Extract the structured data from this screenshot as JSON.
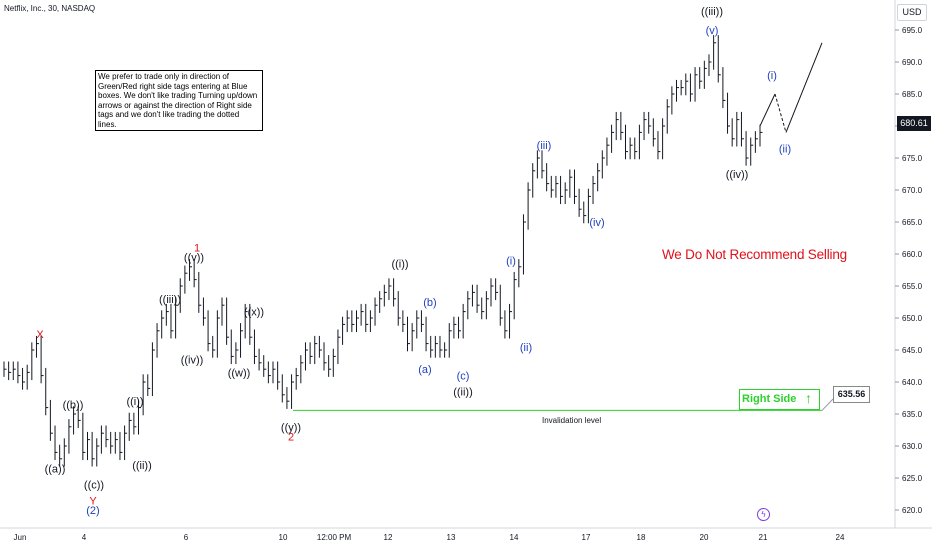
{
  "header": {
    "title": "Netflix, Inc., 30, NASDAQ"
  },
  "note": {
    "text": "We prefer to trade only in direction of Green/Red right side tags entering at Blue boxes. We don't like trading Turning up/down arrows or against the direction of Right side tags and we don't like trading the dotted lines."
  },
  "warning": {
    "text": "We Do Not Recommend Selling"
  },
  "right_side": {
    "label": "Right Side",
    "arrow": "↑",
    "value": "635.56"
  },
  "invalidation": {
    "label": "Invalidation level",
    "price": 635.56
  },
  "last_price": "680.61",
  "currency": "USD",
  "colors": {
    "black": "#131722",
    "red": "#e0111a",
    "blue": "#1f3fbf",
    "green": "#2bd22b",
    "grid": "#e6e9ef"
  },
  "chart_data": {
    "type": "line",
    "title": "Netflix, Inc., 30, NASDAQ",
    "ylim": [
      617,
      698
    ],
    "y_ticks": [
      620.0,
      625.0,
      630.0,
      635.0,
      640.0,
      645.0,
      650.0,
      655.0,
      660.0,
      665.0,
      670.0,
      675.0,
      680.0,
      685.0,
      690.0,
      695.0
    ],
    "x_ticks": [
      "Jun",
      "4",
      "6",
      "10",
      "12:00 PM",
      "12",
      "13",
      "14",
      "17",
      "18",
      "20",
      "21",
      "24"
    ],
    "series": [
      {
        "values": [
          642,
          641.5,
          642,
          641,
          640,
          641.5,
          645,
          646,
          641,
          636,
          632,
          629,
          628,
          630,
          633,
          635,
          634,
          629,
          631,
          628,
          630,
          632,
          631,
          630,
          631,
          629,
          632,
          634,
          633,
          636,
          640,
          639,
          645,
          648,
          650,
          651,
          648,
          652,
          655,
          657,
          658,
          656,
          652,
          650,
          646,
          645,
          650,
          652,
          647,
          644,
          645,
          648,
          651,
          647,
          644,
          643,
          642,
          641,
          642,
          640,
          638,
          637,
          640,
          641,
          643,
          645,
          644,
          646,
          645,
          643,
          642,
          644,
          647,
          649,
          650,
          649,
          650,
          651,
          649,
          650,
          652,
          653,
          654,
          655,
          653,
          650,
          649,
          646,
          648,
          650,
          649,
          646,
          645,
          646,
          645,
          645,
          648,
          649,
          648,
          651,
          653,
          654,
          652,
          651,
          653,
          655,
          654,
          650,
          648,
          651,
          656,
          658,
          665,
          670,
          673,
          675,
          673,
          671,
          670,
          671,
          669,
          670,
          672,
          669,
          667,
          666,
          669,
          671,
          673,
          675,
          677,
          679,
          681,
          679,
          676,
          677,
          676,
          679,
          681,
          680,
          678,
          676,
          680,
          683,
          685,
          686,
          686,
          687,
          685,
          688,
          687,
          689,
          690,
          693,
          688,
          684,
          680,
          678,
          681,
          678,
          675,
          677,
          678,
          679
        ]
      }
    ],
    "wave_labels": [
      {
        "text": "X",
        "price": 647.5,
        "color": "red"
      },
      {
        "text": "((a))",
        "price": 626.5,
        "color": "black"
      },
      {
        "text": "((b))",
        "price": 636.5,
        "color": "black"
      },
      {
        "text": "((c))",
        "price": 624,
        "color": "black"
      },
      {
        "text": "Y",
        "price": 621.5,
        "color": "red"
      },
      {
        "text": "(2)",
        "price": 620,
        "color": "blue"
      },
      {
        "text": "((i))",
        "price": 637,
        "color": "black"
      },
      {
        "text": "((ii))",
        "price": 627,
        "color": "black"
      },
      {
        "text": "((iii))",
        "price": 653,
        "color": "black"
      },
      {
        "text": "((iv))",
        "price": 643.5,
        "color": "black"
      },
      {
        "text": "((v))",
        "price": 659.5,
        "color": "black"
      },
      {
        "text": "1",
        "price": 661,
        "color": "red"
      },
      {
        "text": "((w))",
        "price": 641.5,
        "color": "black"
      },
      {
        "text": "((x))",
        "price": 651,
        "color": "black"
      },
      {
        "text": "((y))",
        "price": 633,
        "color": "black"
      },
      {
        "text": "2",
        "price": 631.5,
        "color": "red"
      },
      {
        "text": "((i))",
        "price": 658.5,
        "color": "black"
      },
      {
        "text": "(a)",
        "price": 642,
        "color": "blue"
      },
      {
        "text": "(b)",
        "price": 652.5,
        "color": "blue"
      },
      {
        "text": "(c)",
        "price": 641,
        "color": "blue"
      },
      {
        "text": "((ii))",
        "price": 638.5,
        "color": "black"
      },
      {
        "text": "(i)",
        "price": 659,
        "color": "blue"
      },
      {
        "text": "(ii)",
        "price": 645.5,
        "color": "blue"
      },
      {
        "text": "(iii)",
        "price": 677,
        "color": "blue"
      },
      {
        "text": "(iv)",
        "price": 665,
        "color": "blue"
      },
      {
        "text": "((iii))",
        "price": 698,
        "color": "black"
      },
      {
        "text": "(v)",
        "price": 695,
        "color": "blue"
      },
      {
        "text": "((iv))",
        "price": 672.5,
        "color": "black"
      },
      {
        "text": "(i)",
        "price": 688,
        "color": "blue"
      },
      {
        "text": "(ii)",
        "price": 676.5,
        "color": "blue"
      }
    ],
    "projection": [
      680,
      685,
      679,
      693
    ],
    "axis_right": true,
    "grid": false
  }
}
